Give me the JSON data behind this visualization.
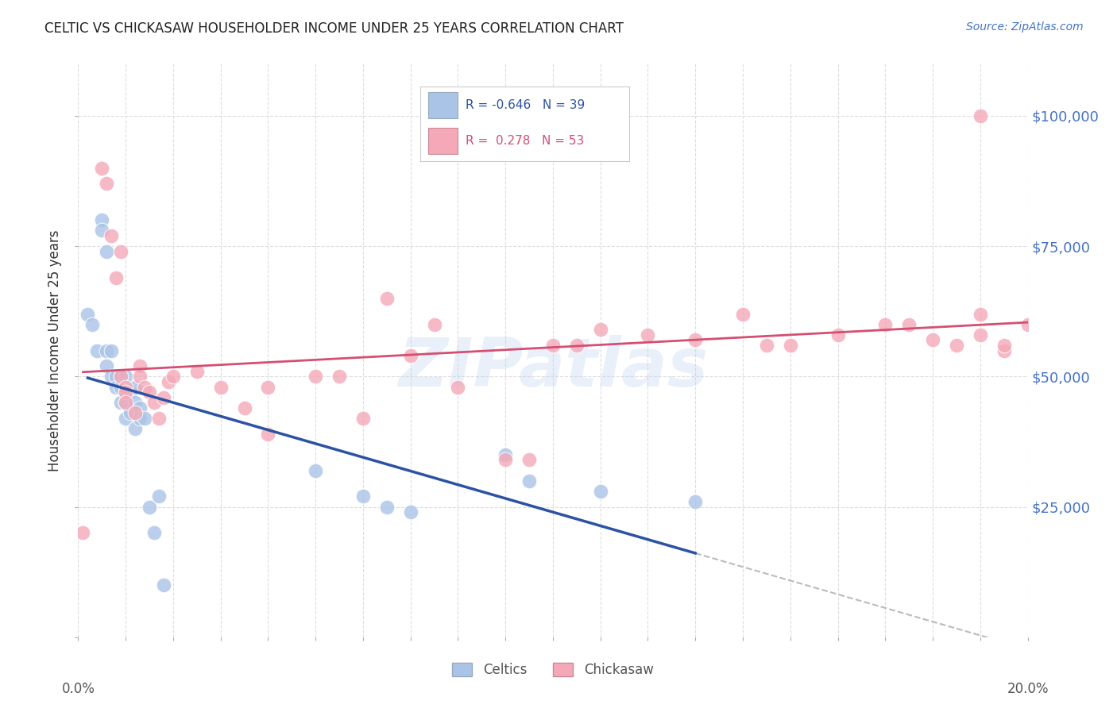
{
  "title": "CELTIC VS CHICKASAW HOUSEHOLDER INCOME UNDER 25 YEARS CORRELATION CHART",
  "source": "Source: ZipAtlas.com",
  "ylabel": "Householder Income Under 25 years",
  "xlim": [
    0.0,
    0.2
  ],
  "ylim": [
    0,
    110000
  ],
  "yticks": [
    0,
    25000,
    50000,
    75000,
    100000
  ],
  "ytick_labels": [
    "",
    "$25,000",
    "$50,000",
    "$75,000",
    "$100,000"
  ],
  "xticks": [
    0.0,
    0.05,
    0.1,
    0.15,
    0.2
  ],
  "xtick_labels": [
    "0.0%",
    "",
    "",
    "",
    "20.0%"
  ],
  "background_color": "#ffffff",
  "grid_color": "#dddddd",
  "watermark": "ZIPatlas",
  "celtics_R": "-0.646",
  "celtics_N": "39",
  "chickasaw_R": "0.278",
  "chickasaw_N": "53",
  "celtics_color": "#aac4e8",
  "chickasaw_color": "#f4a8b8",
  "celtics_line_color": "#2b52a3",
  "chickasaw_line_color": "#d44f72",
  "dashed_line_color": "#bbbbbb",
  "celtics_x": [
    0.002,
    0.003,
    0.004,
    0.005,
    0.005,
    0.006,
    0.006,
    0.006,
    0.007,
    0.007,
    0.008,
    0.008,
    0.009,
    0.009,
    0.009,
    0.01,
    0.01,
    0.01,
    0.01,
    0.011,
    0.011,
    0.012,
    0.012,
    0.012,
    0.013,
    0.013,
    0.014,
    0.015,
    0.016,
    0.017,
    0.018,
    0.05,
    0.06,
    0.065,
    0.07,
    0.09,
    0.095,
    0.11,
    0.13
  ],
  "celtics_y": [
    62000,
    60000,
    55000,
    80000,
    78000,
    74000,
    55000,
    52000,
    55000,
    50000,
    50000,
    48000,
    50000,
    48000,
    45000,
    50000,
    47000,
    45000,
    42000,
    47000,
    43000,
    48000,
    45000,
    40000,
    44000,
    42000,
    42000,
    25000,
    20000,
    27000,
    10000,
    32000,
    27000,
    25000,
    24000,
    35000,
    30000,
    28000,
    26000
  ],
  "chickasaw_x": [
    0.001,
    0.005,
    0.006,
    0.007,
    0.008,
    0.009,
    0.009,
    0.01,
    0.01,
    0.01,
    0.012,
    0.013,
    0.013,
    0.014,
    0.015,
    0.016,
    0.017,
    0.018,
    0.019,
    0.02,
    0.025,
    0.03,
    0.035,
    0.04,
    0.04,
    0.05,
    0.055,
    0.06,
    0.065,
    0.07,
    0.075,
    0.08,
    0.09,
    0.095,
    0.1,
    0.105,
    0.11,
    0.12,
    0.13,
    0.14,
    0.145,
    0.15,
    0.16,
    0.17,
    0.175,
    0.18,
    0.185,
    0.19,
    0.195,
    0.19,
    0.19,
    0.195,
    0.2
  ],
  "chickasaw_y": [
    20000,
    90000,
    87000,
    77000,
    69000,
    74000,
    50000,
    48000,
    47000,
    45000,
    43000,
    52000,
    50000,
    48000,
    47000,
    45000,
    42000,
    46000,
    49000,
    50000,
    51000,
    48000,
    44000,
    48000,
    39000,
    50000,
    50000,
    42000,
    65000,
    54000,
    60000,
    48000,
    34000,
    34000,
    56000,
    56000,
    59000,
    58000,
    57000,
    62000,
    56000,
    56000,
    58000,
    60000,
    60000,
    57000,
    56000,
    100000,
    55000,
    58000,
    62000,
    56000,
    60000
  ]
}
